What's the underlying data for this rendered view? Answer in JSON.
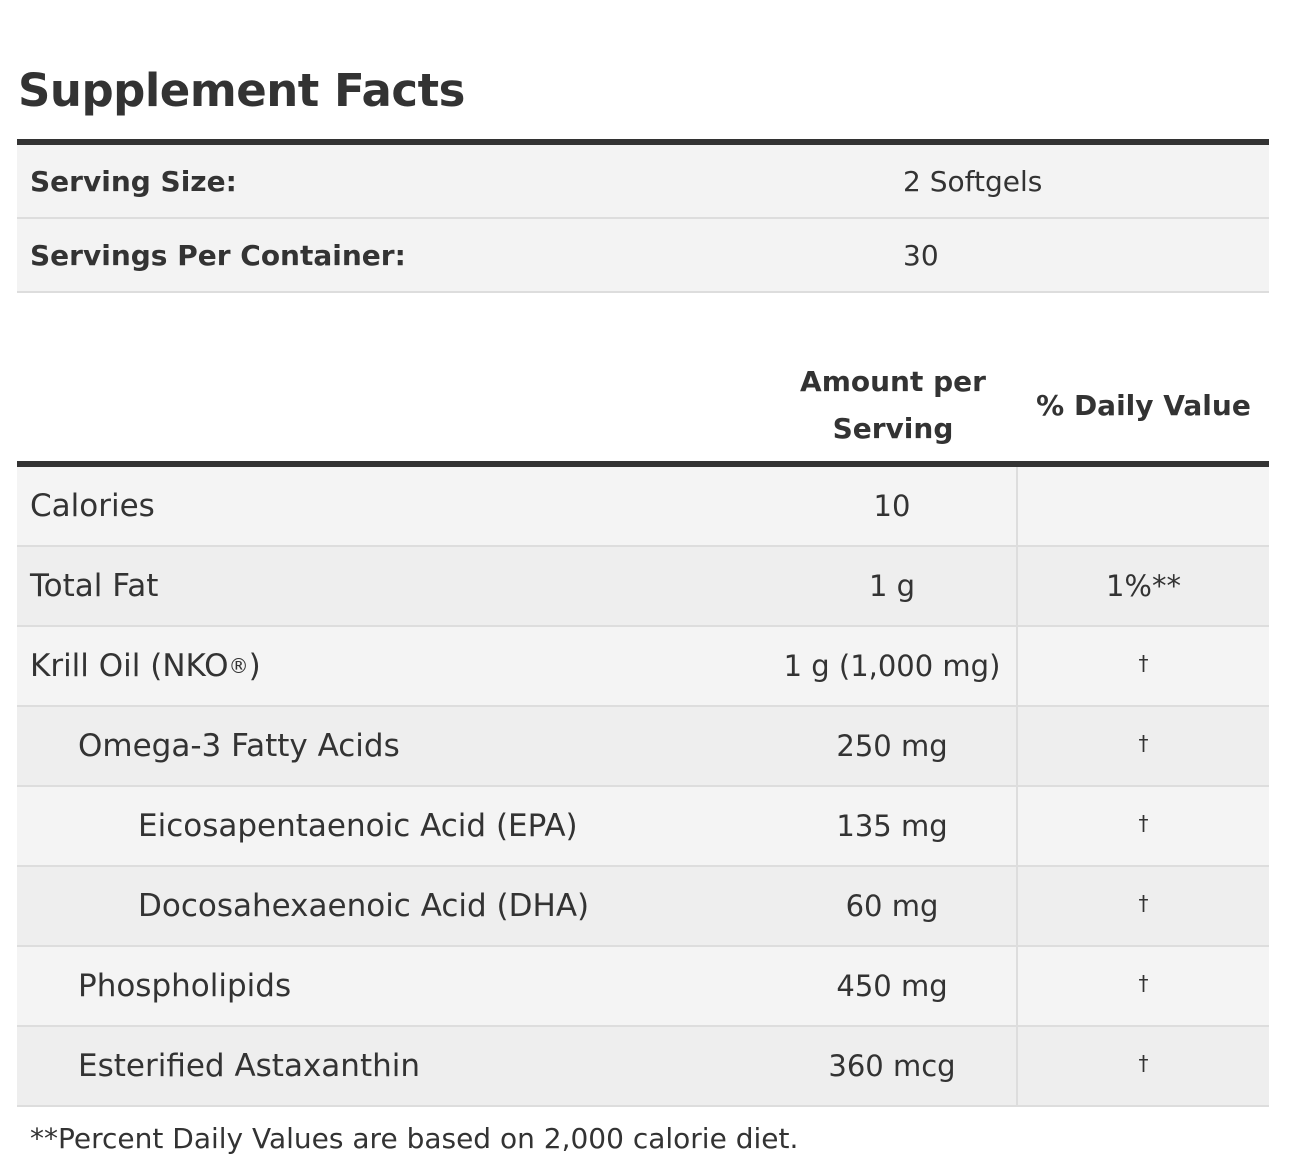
{
  "title": "Supplement Facts",
  "serving": {
    "size_label": "Serving Size:",
    "size_value": "2 Softgels",
    "per_container_label": "Servings Per Container:",
    "per_container_value": "30"
  },
  "headers": {
    "amount_line1": "Amount per",
    "amount_line2": "Serving",
    "daily_value": "% Daily Value"
  },
  "nutrients": [
    {
      "name": "Calories",
      "amount": "10",
      "dv": ""
    },
    {
      "name": "Total Fat",
      "amount": "1 g",
      "dv": "1%**"
    },
    {
      "name": "Krill Oil (NKO",
      "name_sup": "®",
      "name_suffix": ")",
      "amount": "1 g (1,000 mg)",
      "dv": "†"
    },
    {
      "name": "Omega-3 Fatty Acids",
      "amount": "250 mg",
      "dv": "†"
    },
    {
      "name": "Eicosapentaenoic Acid (EPA)",
      "amount": "135 mg",
      "dv": "†"
    },
    {
      "name": "Docosahexaenoic Acid (DHA)",
      "amount": "60 mg",
      "dv": "†"
    },
    {
      "name": "Phospholipids",
      "amount": "450 mg",
      "dv": "†"
    },
    {
      "name": "Esterified Astaxanthin",
      "amount": "360 mcg",
      "dv": "†"
    }
  ],
  "footnote": "**Percent Daily Values are based on 2,000 calorie diet."
}
